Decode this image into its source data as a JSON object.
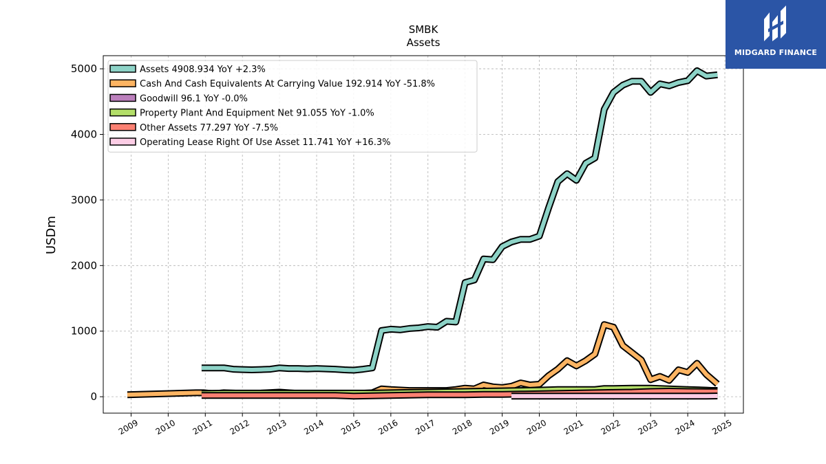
{
  "brand": {
    "name": "MIDGARD FINANCE",
    "logo_color": "#2b55a6"
  },
  "chart_data": {
    "type": "line",
    "title": "SMBK",
    "subtitle": "Assets",
    "ylabel": "USDm",
    "xlabel": "",
    "xlim": [
      2008.25,
      2025.5
    ],
    "ylim": [
      -250,
      5200
    ],
    "yticks": [
      0,
      1000,
      2000,
      3000,
      4000,
      5000
    ],
    "xticks": [
      2009,
      2010,
      2011,
      2012,
      2013,
      2014,
      2015,
      2016,
      2017,
      2018,
      2019,
      2020,
      2021,
      2022,
      2023,
      2024,
      2025
    ],
    "grid": true,
    "legend_position": "top-left",
    "series": [
      {
        "name": "Assets  4908.934 YoY +2.3%",
        "color": "#8dd3c7",
        "x": [
          2010.9,
          2011.25,
          2011.5,
          2011.75,
          2012.0,
          2012.25,
          2012.5,
          2012.75,
          2013.0,
          2013.25,
          2013.5,
          2013.75,
          2014.0,
          2014.25,
          2014.5,
          2014.75,
          2015.0,
          2015.25,
          2015.5,
          2015.75,
          2016.0,
          2016.25,
          2016.5,
          2016.75,
          2017.0,
          2017.25,
          2017.5,
          2017.75,
          2018.0,
          2018.25,
          2018.5,
          2018.75,
          2019.0,
          2019.25,
          2019.5,
          2019.75,
          2020.0,
          2020.25,
          2020.5,
          2020.75,
          2021.0,
          2021.25,
          2021.5,
          2021.75,
          2022.0,
          2022.25,
          2022.5,
          2022.75,
          2023.0,
          2023.25,
          2023.5,
          2023.75,
          2024.0,
          2024.25,
          2024.5,
          2024.8
        ],
        "y": [
          440,
          440,
          440,
          420,
          415,
          410,
          415,
          420,
          440,
          430,
          430,
          425,
          430,
          425,
          420,
          410,
          405,
          420,
          440,
          1010,
          1030,
          1020,
          1040,
          1050,
          1070,
          1060,
          1150,
          1140,
          1740,
          1780,
          2100,
          2090,
          2290,
          2360,
          2400,
          2400,
          2450,
          2880,
          3280,
          3400,
          3300,
          3560,
          3640,
          4380,
          4640,
          4750,
          4810,
          4810,
          4640,
          4770,
          4740,
          4790,
          4820,
          4970,
          4890,
          4908.934
        ]
      },
      {
        "name": "Cash And Cash Equivalents At Carrying Value  192.914 YoY -51.8%",
        "color": "#fdb462",
        "x": [
          2008.9,
          2010.75,
          2010.95,
          2011.25,
          2011.5,
          2012.0,
          2012.5,
          2013.0,
          2013.5,
          2014.0,
          2014.5,
          2015.0,
          2015.5,
          2015.75,
          2016.0,
          2016.5,
          2017.0,
          2017.5,
          2017.75,
          2018.0,
          2018.25,
          2018.5,
          2018.75,
          2019.0,
          2019.25,
          2019.5,
          2019.75,
          2020.0,
          2020.25,
          2020.5,
          2020.75,
          2021.0,
          2021.25,
          2021.5,
          2021.75,
          2022.0,
          2022.25,
          2022.5,
          2022.75,
          2023.0,
          2023.25,
          2023.5,
          2023.75,
          2024.0,
          2024.25,
          2024.5,
          2024.8
        ],
        "y": [
          30,
          60,
          60,
          45,
          60,
          50,
          55,
          70,
          50,
          50,
          45,
          45,
          60,
          120,
          110,
          95,
          95,
          95,
          110,
          130,
          120,
          180,
          150,
          140,
          160,
          210,
          180,
          190,
          320,
          420,
          550,
          470,
          550,
          650,
          1100,
          1060,
          780,
          670,
          560,
          260,
          310,
          250,
          410,
          370,
          510,
          340,
          192.914
        ]
      },
      {
        "name": "Goodwill  96.1 YoY -0.0%",
        "color": "#bc80bd",
        "x": [
          2018.0,
          2018.25,
          2018.5,
          2018.75,
          2019.0,
          2019.5,
          2020.0,
          2020.5,
          2021.0,
          2021.5,
          2022.0,
          2022.5,
          2023.0,
          2023.5,
          2024.0,
          2024.5,
          2024.8
        ],
        "y": [
          60,
          60,
          60,
          60,
          60,
          60,
          96.1,
          96.1,
          96.1,
          96.1,
          96.1,
          96.1,
          96.1,
          96.1,
          96.1,
          96.1,
          96.1
        ]
      },
      {
        "name": "Property Plant And Equipment Net  91.055 YoY -1.0%",
        "color": "#b3de69",
        "x": [
          2010.9,
          2011.5,
          2012.0,
          2012.5,
          2013.0,
          2013.5,
          2014.0,
          2014.5,
          2015.0,
          2015.5,
          2016.0,
          2016.5,
          2017.0,
          2017.5,
          2018.0,
          2018.5,
          2019.0,
          2019.5,
          2020.0,
          2020.5,
          2021.0,
          2021.5,
          2021.75,
          2022.0,
          2022.5,
          2023.0,
          2023.5,
          2024.0,
          2024.5,
          2024.8
        ],
        "y": [
          50,
          55,
          55,
          55,
          55,
          55,
          55,
          55,
          55,
          55,
          60,
          65,
          70,
          75,
          80,
          85,
          90,
          95,
          100,
          110,
          110,
          110,
          125,
          125,
          130,
          130,
          120,
          110,
          100,
          91.055
        ]
      },
      {
        "name": "Other Assets  77.297 YoY -7.5%",
        "color": "#fb8072",
        "x": [
          2010.9,
          2011.5,
          2012.0,
          2012.5,
          2013.0,
          2013.5,
          2014.0,
          2014.5,
          2015.0,
          2015.5,
          2016.0,
          2016.5,
          2017.0,
          2017.5,
          2018.0,
          2018.5,
          2019.0,
          2019.5,
          2020.0,
          2020.5,
          2021.0,
          2021.5,
          2022.0,
          2022.5,
          2023.0,
          2023.5,
          2024.0,
          2024.5,
          2024.8
        ],
        "y": [
          20,
          20,
          20,
          20,
          20,
          20,
          20,
          20,
          10,
          15,
          20,
          25,
          30,
          30,
          30,
          35,
          35,
          40,
          45,
          50,
          55,
          60,
          65,
          70,
          80,
          85,
          80,
          78,
          77.297
        ]
      },
      {
        "name": "Operating Lease Right Of Use Asset  11.741 YoY +16.3%",
        "color": "#fccde5",
        "x": [
          2019.25,
          2019.5,
          2020.0,
          2020.5,
          2021.0,
          2021.5,
          2022.0,
          2022.5,
          2023.0,
          2023.5,
          2024.0,
          2024.5,
          2024.8
        ],
        "y": [
          10,
          10,
          10,
          10,
          10,
          10,
          10,
          10,
          10,
          10,
          10,
          10,
          11.741
        ]
      }
    ]
  }
}
